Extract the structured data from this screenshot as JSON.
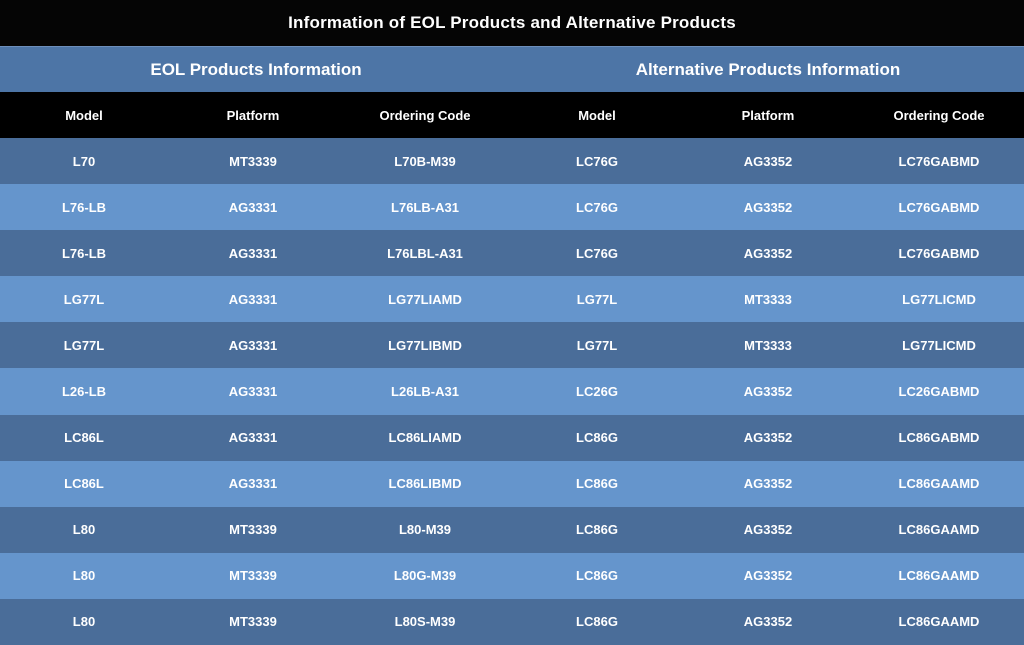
{
  "title": "Information of EOL Products and Alternative Products",
  "groups": {
    "eol": "EOL Products Information",
    "alt": "Alternative Products Information"
  },
  "headers": [
    "Model",
    "Platform",
    "Ordering Code",
    "Model",
    "Platform",
    "Ordering Code"
  ],
  "rows": [
    [
      "L70",
      "MT3339",
      "L70B-M39",
      "LC76G",
      "AG3352",
      "LC76GABMD"
    ],
    [
      "L76-LB",
      "AG3331",
      "L76LB-A31",
      "LC76G",
      "AG3352",
      "LC76GABMD"
    ],
    [
      "L76-LB",
      "AG3331",
      "L76LBL-A31",
      "LC76G",
      "AG3352",
      "LC76GABMD"
    ],
    [
      "LG77L",
      "AG3331",
      "LG77LIAMD",
      "LG77L",
      "MT3333",
      "LG77LICMD"
    ],
    [
      "LG77L",
      "AG3331",
      "LG77LIBMD",
      "LG77L",
      "MT3333",
      "LG77LICMD"
    ],
    [
      "L26-LB",
      "AG3331",
      "L26LB-A31",
      "LC26G",
      "AG3352",
      "LC26GABMD"
    ],
    [
      "LC86L",
      "AG3331",
      "LC86LIAMD",
      "LC86G",
      "AG3352",
      "LC86GABMD"
    ],
    [
      "LC86L",
      "AG3331",
      "LC86LIBMD",
      "LC86G",
      "AG3352",
      "LC86GAAMD"
    ],
    [
      "L80",
      "MT3339",
      "L80-M39",
      "LC86G",
      "AG3352",
      "LC86GAAMD"
    ],
    [
      "L80",
      "MT3339",
      "L80G-M39",
      "LC86G",
      "AG3352",
      "LC86GAAMD"
    ],
    [
      "L80",
      "MT3339",
      "L80S-M39",
      "LC86G",
      "AG3352",
      "LC86GAAMD"
    ]
  ]
}
